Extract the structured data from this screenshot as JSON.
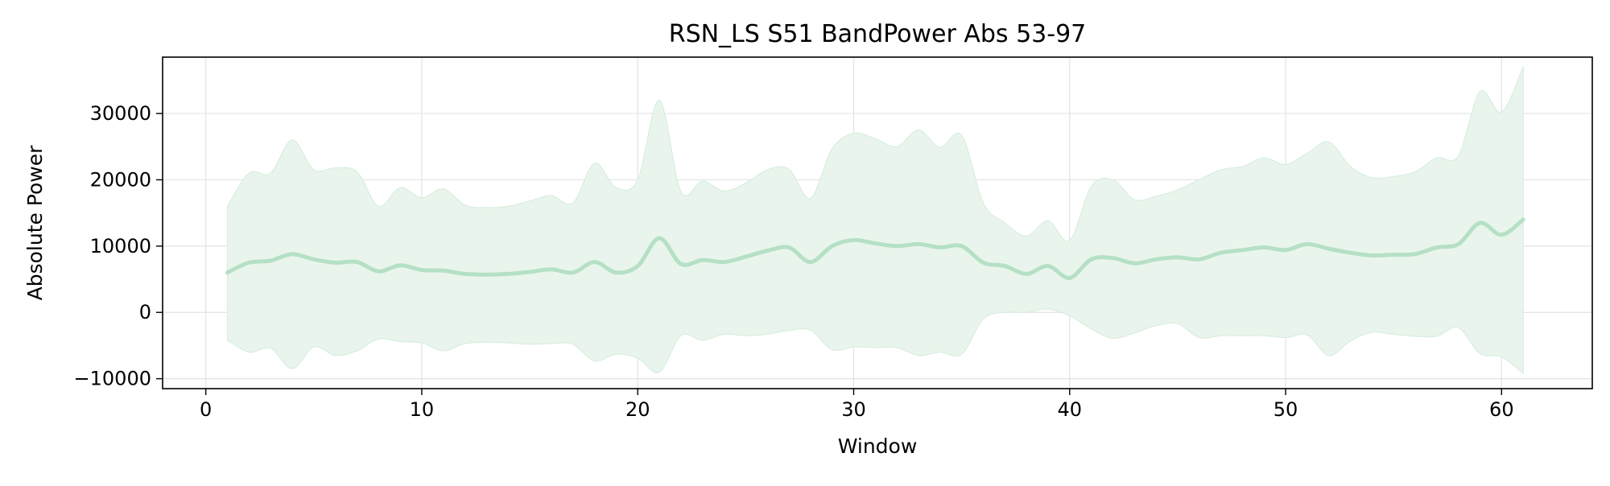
{
  "chart_data": {
    "type": "area",
    "title": "RSN_LS S51 BandPower Abs 53-97",
    "xlabel": "Window",
    "ylabel": "Absolute Power",
    "xlim": [
      -2,
      64.2
    ],
    "ylim": [
      -11500,
      38500
    ],
    "xticks": [
      0,
      10,
      20,
      30,
      40,
      50,
      60
    ],
    "yticks": [
      -10000,
      0,
      10000,
      20000,
      30000
    ],
    "ytick_labels": [
      "−10000",
      "0",
      "10000",
      "20000",
      "30000"
    ],
    "grid": true,
    "legend": "none",
    "colors": {
      "line": "#b5e0c5",
      "band": "#e9f5ec",
      "band_edge": "#d8eddf",
      "grid": "#e2e2e2",
      "axis": "#000000"
    },
    "x": [
      1,
      2,
      3,
      4,
      5,
      6,
      7,
      8,
      9,
      10,
      11,
      12,
      13,
      14,
      15,
      16,
      17,
      18,
      19,
      20,
      21,
      22,
      23,
      24,
      25,
      26,
      27,
      28,
      29,
      30,
      31,
      32,
      33,
      34,
      35,
      36,
      37,
      38,
      39,
      40,
      41,
      42,
      43,
      44,
      45,
      46,
      47,
      48,
      49,
      50,
      51,
      52,
      53,
      54,
      55,
      56,
      57,
      58,
      59,
      60,
      61
    ],
    "series": [
      {
        "values": [
          6000,
          7500,
          7800,
          8800,
          8000,
          7500,
          7600,
          6200,
          7100,
          6400,
          6300,
          5800,
          5700,
          5800,
          6100,
          6500,
          6000,
          7600,
          6000,
          7000,
          11200,
          7300,
          7900,
          7600,
          8400,
          9300,
          9800,
          7600,
          10000,
          10900,
          10400,
          10000,
          10300,
          9800,
          10000,
          7500,
          7000,
          5800,
          7000,
          5200,
          8000,
          8200,
          7400,
          8000,
          8300,
          8000,
          9000,
          9400,
          9800,
          9400,
          10300,
          9600,
          9000,
          8600,
          8700,
          8800,
          9800,
          10300,
          13500,
          11700,
          14000
        ],
        "upper": [
          16000,
          21000,
          21000,
          26000,
          21500,
          21800,
          21200,
          16000,
          18800,
          17300,
          18600,
          16200,
          15800,
          16000,
          16800,
          17600,
          16500,
          22500,
          18800,
          20000,
          32000,
          18200,
          19800,
          18300,
          19500,
          21500,
          21600,
          17200,
          24700,
          27000,
          26200,
          25000,
          27500,
          24900,
          26700,
          16500,
          13500,
          11500,
          13800,
          10800,
          19000,
          20000,
          17000,
          17500,
          18500,
          20000,
          21500,
          22000,
          23300,
          22300,
          24000,
          25700,
          22000,
          20300,
          20500,
          21200,
          23300,
          23600,
          33300,
          30200,
          37000
        ],
        "lower": [
          -4200,
          -6000,
          -5400,
          -8500,
          -5200,
          -6500,
          -5800,
          -4000,
          -4400,
          -4600,
          -5800,
          -4700,
          -4500,
          -4600,
          -4800,
          -4700,
          -4800,
          -7300,
          -6300,
          -6900,
          -9000,
          -3500,
          -4200,
          -3300,
          -3500,
          -3300,
          -2700,
          -2700,
          -5600,
          -5200,
          -5300,
          -5300,
          -6500,
          -6000,
          -6300,
          -1000,
          0,
          0,
          500,
          -500,
          -2500,
          -3900,
          -3100,
          -2000,
          -1700,
          -3800,
          -3500,
          -3500,
          -3500,
          -3800,
          -3400,
          -6500,
          -4300,
          -3000,
          -3300,
          -3600,
          -3600,
          -2300,
          -6200,
          -6700,
          -9200
        ]
      }
    ]
  }
}
